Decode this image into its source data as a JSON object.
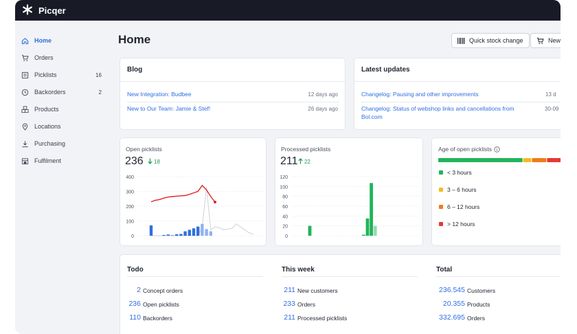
{
  "app": {
    "name": "Picqer"
  },
  "sidebar": {
    "items": [
      {
        "label": "Home",
        "icon": "home-icon",
        "active": true,
        "count": ""
      },
      {
        "label": "Orders",
        "icon": "cart-icon",
        "count": ""
      },
      {
        "label": "Picklists",
        "icon": "list-icon",
        "count": "16"
      },
      {
        "label": "Backorders",
        "icon": "clock-icon",
        "count": "2"
      },
      {
        "label": "Products",
        "icon": "boxes-icon",
        "count": ""
      },
      {
        "label": "Locations",
        "icon": "pin-icon",
        "count": ""
      },
      {
        "label": "Purchasing",
        "icon": "download-icon",
        "count": ""
      },
      {
        "label": "Fulfilment",
        "icon": "warehouse-icon",
        "count": ""
      }
    ]
  },
  "header": {
    "title": "Home",
    "quick_stock_label": "Quick stock change",
    "new_label": "New"
  },
  "blog": {
    "title": "Blog",
    "items": [
      {
        "text": "New Integration: Budbee",
        "date": "12 days ago"
      },
      {
        "text": "New to Our Team: Jamie & Stef!",
        "date": "26 days ago"
      }
    ]
  },
  "updates": {
    "title": "Latest updates",
    "items": [
      {
        "text": "Changelog: Pausing and other improvements",
        "date": "13 d"
      },
      {
        "text": "Changelog: Status of webshop links and cancellations from Bol.com",
        "date": "30-09"
      }
    ]
  },
  "open_picklists": {
    "label": "Open picklists",
    "value": "236",
    "delta": "18"
  },
  "processed_picklists": {
    "label": "Processed picklists",
    "value": "211",
    "delta": "22"
  },
  "age": {
    "label": "Age of open picklists",
    "items": [
      {
        "label": "< 3 hours",
        "color": "#22b45a"
      },
      {
        "label": "3 – 6 hours",
        "color": "#f2bd1d"
      },
      {
        "label": "6 – 12 hours",
        "color": "#f07b1b"
      },
      {
        "label": "> 12 hours",
        "color": "#e53935"
      }
    ]
  },
  "summary": {
    "todo": {
      "title": "Todo",
      "rows": [
        {
          "num": "2",
          "label": "Concept orders"
        },
        {
          "num": "236",
          "label": "Open picklists"
        },
        {
          "num": "110",
          "label": "Backorders"
        }
      ]
    },
    "week": {
      "title": "This week",
      "rows": [
        {
          "num": "211",
          "label": "New customers"
        },
        {
          "num": "233",
          "label": "Orders"
        },
        {
          "num": "211",
          "label": "Processed picklists"
        }
      ]
    },
    "total": {
      "title": "Total",
      "rows": [
        {
          "num": "236.545",
          "label": "Customers"
        },
        {
          "num": "20.355",
          "label": "Products"
        },
        {
          "num": "332.695",
          "label": "Orders"
        }
      ]
    }
  },
  "chart_data": [
    {
      "type": "bar",
      "title": "Open picklists",
      "ylim": [
        0,
        400
      ],
      "yticks": [
        "0",
        "100",
        "200",
        "300",
        "400"
      ],
      "series": [
        {
          "values": [
            230,
            240,
            245,
            255,
            262,
            265,
            268,
            270,
            272,
            280,
            290,
            300,
            340,
            310,
            265,
            228
          ]
        },
        {
          "values": [
            70,
            0,
            0,
            5,
            8,
            3,
            10,
            12,
            30,
            40,
            50,
            62,
            80,
            45,
            30,
            0
          ]
        }
      ]
    },
    {
      "type": "bar",
      "title": "Processed picklists",
      "ylim": [
        0,
        120
      ],
      "yticks": [
        "0",
        "20",
        "40",
        "60",
        "80",
        "100",
        "120"
      ],
      "series": [
        {
          "values": [
            20,
            0,
            0,
            0,
            0,
            0,
            0,
            0,
            0,
            0,
            0,
            0,
            0,
            0,
            2,
            35,
            107,
            20
          ]
        }
      ]
    },
    {
      "type": "bar",
      "title": "Age of open picklists",
      "series": [
        {
          "name": "< 3 hours",
          "values": [
            68
          ]
        },
        {
          "name": "3 – 6 hours",
          "values": [
            7
          ]
        },
        {
          "name": "6 – 12 hours",
          "values": [
            12
          ]
        },
        {
          "name": "> 12 hours",
          "values": [
            13
          ]
        }
      ]
    }
  ]
}
